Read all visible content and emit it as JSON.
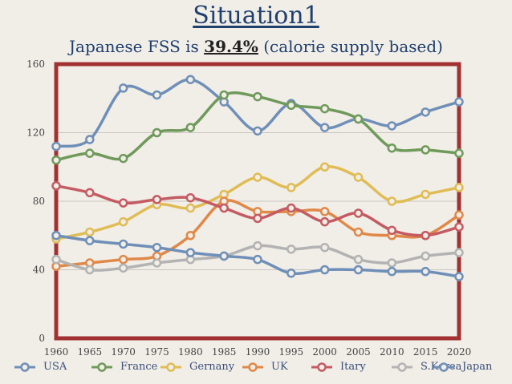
{
  "header": {
    "title": "Situation1",
    "subtitle_prefix": "Japanese FSS is ",
    "subtitle_value": "39.4%",
    "subtitle_suffix": " (calorie supply based)"
  },
  "chart_data": {
    "type": "line",
    "x": [
      1960,
      1965,
      1970,
      1975,
      1980,
      1985,
      1990,
      1995,
      2000,
      2005,
      2010,
      2015,
      2020
    ],
    "ylim": [
      0,
      160
    ],
    "yticks": [
      0,
      40,
      80,
      120,
      160
    ],
    "grid": true,
    "legend_position": "bottom",
    "series": [
      {
        "name": "USA",
        "color": "#6f8fb8",
        "values": [
          112,
          116,
          146,
          142,
          151,
          138,
          121,
          137,
          123,
          128,
          124,
          132,
          138
        ]
      },
      {
        "name": "France",
        "color": "#6f9a5b",
        "values": [
          104,
          108,
          105,
          120,
          123,
          142,
          141,
          136,
          134,
          128,
          111,
          110,
          108
        ]
      },
      {
        "name": "Gernany",
        "color": "#e0bc55",
        "values": [
          58,
          62,
          68,
          78,
          76,
          84,
          94,
          88,
          100,
          94,
          80,
          84,
          88
        ]
      },
      {
        "name": "UK",
        "color": "#e08848",
        "values": [
          42,
          44,
          46,
          48,
          60,
          80,
          74,
          74,
          74,
          62,
          60,
          60,
          72
        ]
      },
      {
        "name": "Itary",
        "color": "#c45b62",
        "values": [
          89,
          85,
          79,
          81,
          82,
          76,
          70,
          76,
          68,
          73,
          63,
          60,
          65
        ]
      },
      {
        "name": "S.Korea",
        "color": "#b3b3b3",
        "values": [
          46,
          40,
          41,
          44,
          46,
          48,
          54,
          52,
          53,
          46,
          44,
          48,
          50
        ]
      },
      {
        "name": "Japan",
        "color": "#6f8fb8",
        "values": [
          60,
          57,
          55,
          53,
          50,
          48,
          46,
          38,
          40,
          40,
          39,
          39,
          36
        ]
      }
    ]
  }
}
